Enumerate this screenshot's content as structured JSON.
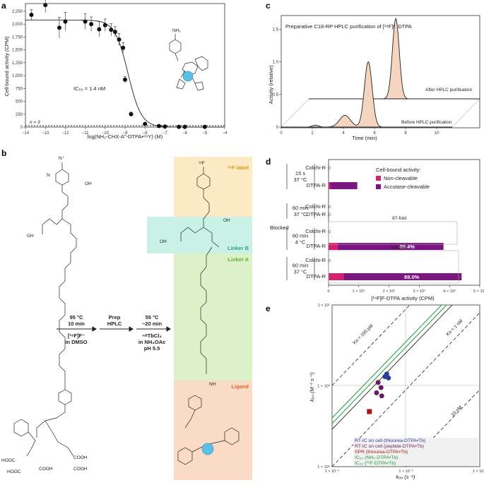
{
  "panels": {
    "a": {
      "label": "a",
      "ylabel": "Cell-bound activity (CPM)",
      "xlabel": "log(NH₂-CHX-A″-DTPA•⁸⁹Y) (M)",
      "ic50": "IC₅₀ = 1.4 nM",
      "n": "n = 3",
      "nh2": "NH₂",
      "yticks": [
        "0",
        "250",
        "500",
        "750",
        "1,000",
        "1,250",
        "1,500",
        "1,750",
        "2,000",
        "2,250"
      ],
      "xticks": [
        "−14",
        "−13",
        "−12",
        "−11",
        "−10",
        "−9",
        "−8",
        "−7",
        "−6",
        "−5",
        "−4"
      ]
    },
    "b": {
      "label": "b",
      "f18": "¹⁸F",
      "f18_label": "¹⁸F-label",
      "linker_b": "Linker B",
      "linker_a": "Linker A",
      "ligand": "Ligand",
      "step1": {
        "l1": "95 °C",
        "l2": "10 min",
        "l3": "[¹⁸F]F⁻",
        "l4": "in DMSO"
      },
      "step2": {
        "l1": "Prep",
        "l2": "HPLC"
      },
      "step3": {
        "l1": "55 °C",
        "l2": "~20 min",
        "l3": "ⁿᵃᵗTbCl₃",
        "l4": "in NH₄OAc",
        "l5": "pH 5.5"
      },
      "groups": {
        "cooh": "COOH",
        "hooc": "HOOC",
        "oh": "OH",
        "o": "O",
        "n": "N",
        "nh": "NH",
        "hn": "HN",
        "nplus": "N⁺"
      }
    },
    "c": {
      "label": "c",
      "title": "Preparative C18-RP HPLC purification of [¹⁸F]F-DTPA",
      "ylabel": "Activity (relative)",
      "xlabel": "Time (min)",
      "after": "After HPLC purification",
      "before": "Before HPLC purification",
      "yticks": [
        "0",
        "0.5",
        "1.0",
        "1.5"
      ],
      "xticks": [
        "0",
        "2",
        "4",
        "6",
        "8",
        "10"
      ]
    },
    "d": {
      "label": "d",
      "legend_title": "Cell-bound activity:",
      "legend": [
        {
          "name": "Non-cleavable",
          "color": "#d4206e"
        },
        {
          "name": "Accutase-cleavable",
          "color": "#7b1580"
        }
      ],
      "blocked": "Blocked",
      "groups": [
        {
          "t": "15 s",
          "temp": "37 °C"
        },
        {
          "t": "60 min",
          "temp": "37 °C"
        },
        {
          "t": "60 min",
          "temp": "4 °C"
        },
        {
          "t": "60 min",
          "temp": "37 °C"
        }
      ],
      "rows": [
        "Colchi-R",
        "DTPA-R",
        "Colchi-R",
        "DTPA-R",
        "Colchi-R",
        "DTPA-R",
        "Colchi-R",
        "DTPA-R"
      ],
      "fold1": "87-fold",
      "fold2": "895-fold",
      "pct1": "89.4%",
      "pct2": "88.0%",
      "xlabel": "[¹⁸F]F-DTPA activity (CPM)",
      "xticks": [
        "0",
        "1 × 10⁵",
        "2 × 10⁵",
        "3 × 10⁵",
        "4 × 10⁵",
        "5 × 10⁵"
      ]
    },
    "e": {
      "label": "e",
      "ylabel": "kₒₙ (M⁻¹ s⁻¹)",
      "xlabel": "kₒₒ (s⁻¹)",
      "kd1": "Kᴅ = 100 pM",
      "kd2": "Kᴅ = 1 nM",
      "kd3": "10 nM",
      "yticks": [
        "1 × 10⁷",
        "1 × 10⁶",
        "1 × 10⁵"
      ],
      "xticks": [
        "1 × 10⁻⁴",
        "1 × 10⁻³",
        "1 × 10⁻²"
      ],
      "legend": [
        {
          "name": "RT-IC on cell (thiourea-DTPA•Tb)",
          "color": "#2a3a9a"
        },
        {
          "name": "RT-IC on cell (peptide-DTPA•Tb)",
          "color": "#6b1a66"
        },
        {
          "name": "SPR (thiourea-DTPA•Tb)",
          "color": "#a01818"
        },
        {
          "name": "IC₅₀ (NH₂-DTPA•Tb)",
          "color": "#1f9a3a"
        },
        {
          "name": "IC₅₀ (¹⁹F-DTPA•Tb)",
          "color": "#1f9a3a"
        }
      ]
    }
  },
  "chart_data": [
    {
      "type": "scatter",
      "title": "",
      "xlabel": "log(NH₂-CHX-A″-DTPA•⁸⁹Y) (M)",
      "ylabel": "Cell-bound activity (CPM)",
      "xlim": [
        -14,
        -4
      ],
      "ylim": [
        0,
        2400
      ],
      "series": [
        {
          "x": [
            -13.7,
            -13,
            -12.3,
            -12,
            -11,
            -10.7,
            -10.3,
            -10,
            -9.7,
            -9.5,
            -9.3,
            -9.1,
            -9,
            -8.7,
            -8,
            -7.3,
            -7,
            -6.3,
            -6,
            -5
          ],
          "y": [
            2180,
            2370,
            1930,
            2050,
            2050,
            2000,
            1900,
            1980,
            1890,
            1850,
            1700,
            1540,
            920,
            250,
            60,
            20,
            10,
            5,
            5,
            5
          ],
          "err": [
            100,
            150,
            200,
            180,
            150,
            140,
            150,
            120,
            120,
            100,
            120,
            100,
            60,
            40,
            30,
            20,
            15,
            10,
            10,
            10
          ]
        }
      ]
    },
    {
      "type": "line",
      "title": "Preparative C18-RP HPLC purification of [¹⁸F]F-DTPA",
      "xlabel": "Time (min)",
      "ylabel": "Activity (relative)",
      "xlim": [
        0,
        11
      ],
      "ylim": [
        0,
        1.6
      ],
      "series": [
        {
          "name": "After HPLC purification",
          "peak_x": 5.6,
          "peak_y": 1.5
        },
        {
          "name": "Before HPLC purification",
          "peak_x": 5.6,
          "peak_y": 1.0
        }
      ]
    },
    {
      "type": "bar",
      "xlabel": "[¹⁸F]F-DTPA activity (CPM)",
      "xlim": [
        0,
        500000
      ],
      "categories": [
        "Colchi-R",
        "DTPA-R",
        "Colchi-R",
        "DTPA-R",
        "Colchi-R",
        "DTPA-R",
        "Colchi-R",
        "DTPA-R"
      ],
      "series": [
        {
          "name": "Non-cleavable",
          "values": [
            1000,
            5000,
            1000,
            1000,
            1000,
            30000,
            1000,
            50000
          ]
        },
        {
          "name": "Accutase-cleavable",
          "values": [
            1000,
            90000,
            1000,
            1000,
            1000,
            350000,
            1000,
            390000
          ]
        }
      ]
    },
    {
      "type": "scatter",
      "xlabel": "kₒₒ (s⁻¹)",
      "ylabel": "kₒₙ (M⁻¹ s⁻¹)",
      "scale": "log",
      "xlim": [
        0.0001,
        0.01
      ],
      "ylim": [
        100000,
        10000000
      ],
      "series": [
        {
          "name": "RT-IC on cell (thiourea-DTPA•Tb)",
          "points": [
            [
              0.00055,
              1400000
            ],
            [
              0.00058,
              1250000
            ],
            [
              0.00052,
              1300000
            ]
          ]
        },
        {
          "name": "RT-IC on cell (peptide-DTPA•Tb)",
          "points": [
            [
              0.00042,
              1100000
            ],
            [
              0.00046,
              950000
            ],
            [
              0.0004,
              820000
            ],
            [
              0.00047,
              750000
            ]
          ]
        },
        {
          "name": "SPR (thiourea-DTPA•Tb)",
          "points": [
            [
              0.00032,
              480000
            ]
          ]
        }
      ]
    }
  ]
}
